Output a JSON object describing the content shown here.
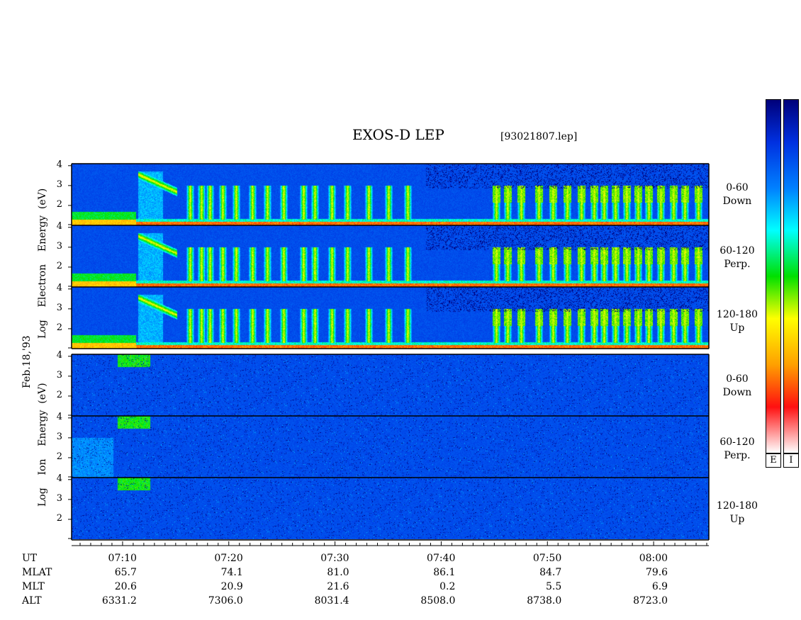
{
  "title": "EXOS-D LEP",
  "file": "[93021807.lep]",
  "date_label": "Feb.18,'93",
  "electron_axis": {
    "words": [
      "Log",
      "Electron",
      "Energy",
      "(eV)"
    ]
  },
  "ion_axis": {
    "words": [
      "Log",
      "Ion",
      "Energy",
      "(eV)"
    ]
  },
  "pitch_panels": [
    {
      "range": "0-60",
      "dir": "Down"
    },
    {
      "range": "60-120",
      "dir": "Perp."
    },
    {
      "range": "120-180",
      "dir": "Up"
    }
  ],
  "colorbar_labels": [
    "E",
    "I"
  ],
  "ephemeris": {
    "row_labels": [
      "UT",
      "MLAT",
      "MLT",
      "ALT"
    ],
    "ut": [
      "07:10",
      "07:20",
      "07:30",
      "07:40",
      "07:50",
      "08:00"
    ],
    "mlat": [
      "65.7",
      "74.1",
      "81.0",
      "86.1",
      "84.7",
      "79.6"
    ],
    "mlt": [
      "20.6",
      "20.9",
      "21.6",
      "0.2",
      "5.5",
      "6.9"
    ],
    "alt": [
      "6331.2",
      "7306.0",
      "8031.4",
      "8508.0",
      "8738.0",
      "8723.0"
    ]
  },
  "chart_data": {
    "type": "heatmap",
    "x_label": "UT",
    "x_ticks": [
      "07:10",
      "07:20",
      "07:30",
      "07:40",
      "07:50",
      "08:00"
    ],
    "x_range_minutes": [
      -4.8,
      55.2
    ],
    "y_ticks": [
      "2",
      "3",
      "4"
    ],
    "y_range_log_eV": [
      1,
      4.1
    ],
    "panels": [
      {
        "species": "Electron",
        "pitch_angle": "0-60",
        "direction": "Down"
      },
      {
        "species": "Electron",
        "pitch_angle": "60-120",
        "direction": "Perp."
      },
      {
        "species": "Electron",
        "pitch_angle": "120-180",
        "direction": "Up"
      },
      {
        "species": "Ion",
        "pitch_angle": "0-60",
        "direction": "Down"
      },
      {
        "species": "Ion",
        "pitch_angle": "60-120",
        "direction": "Perp."
      },
      {
        "species": "Ion",
        "pitch_angle": "120-180",
        "direction": "Up"
      }
    ],
    "colorscale": [
      "#ffffff",
      "#ff1010",
      "#ffa000",
      "#ffff00",
      "#00e000",
      "#00ffff",
      "#0080ff",
      "#0030e0",
      "#00007a"
    ]
  }
}
